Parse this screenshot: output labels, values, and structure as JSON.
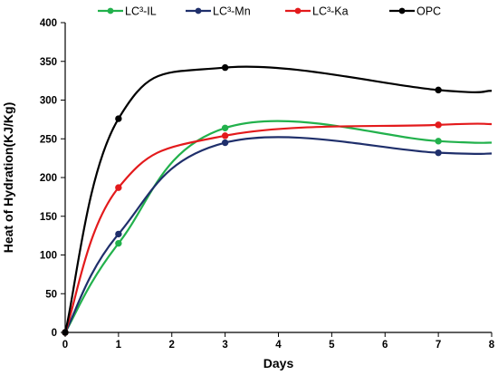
{
  "chart_data": {
    "type": "line",
    "title": "",
    "xlabel": "Days",
    "ylabel": "Heat of Hydration(KJ/Kg)",
    "xlim": [
      0,
      8
    ],
    "ylim": [
      0,
      400
    ],
    "x_ticks": [
      "0",
      "1",
      "2",
      "3",
      "4",
      "5",
      "6",
      "7",
      "8"
    ],
    "y_ticks": [
      "0",
      "50",
      "100",
      "150",
      "200",
      "250",
      "300",
      "350",
      "400"
    ],
    "grid": false,
    "legend_position": "top",
    "series": [
      {
        "name": "LC³-IL",
        "color": "#22b14c",
        "x": [
          0,
          1,
          3,
          7,
          8
        ],
        "y": [
          0,
          115,
          264,
          247,
          245
        ]
      },
      {
        "name": "LC³-Mn",
        "color": "#1f2f6b",
        "x": [
          0,
          1,
          3,
          7,
          8
        ],
        "y": [
          0,
          127,
          245,
          232,
          231
        ]
      },
      {
        "name": "LC³-Ka",
        "color": "#e31a1c",
        "x": [
          0,
          1,
          3,
          7,
          8
        ],
        "y": [
          0,
          187,
          254,
          268,
          269
        ]
      },
      {
        "name": "OPC",
        "color": "#000000",
        "x": [
          0,
          1,
          3,
          7,
          8
        ],
        "y": [
          0,
          276,
          342,
          313,
          312
        ]
      }
    ]
  }
}
